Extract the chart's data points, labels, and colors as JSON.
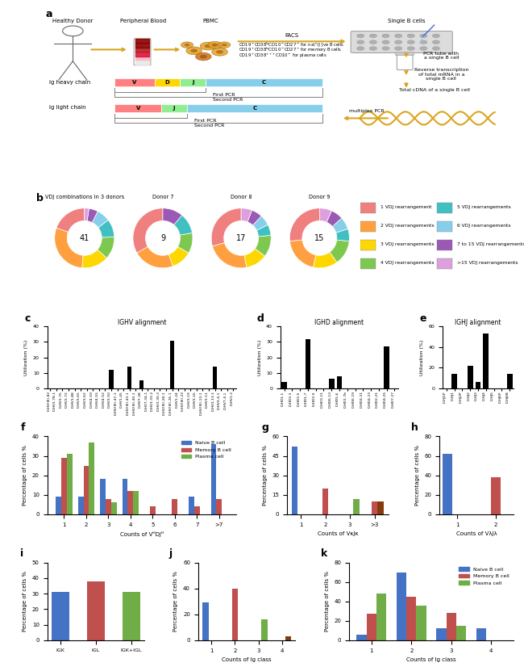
{
  "panel_b": {
    "titles": [
      "VDJ combinations in 3 donors",
      "Donor 7",
      "Donor 8",
      "Donor 9"
    ],
    "numbers": [
      "41",
      "9",
      "17",
      "15"
    ],
    "legend_labels": [
      "1 VDJ rearrangement",
      "2 VDJ rearrangements",
      "3 VDJ rearrangements",
      "4 VDJ rearrangements",
      "5 VDJ rearrangements",
      "6 VDJ rearrangements",
      "7 to 15 VDJ rearrangements",
      ">15 VDJ rearrangements"
    ],
    "donut_colors": [
      "#F08080",
      "#FFA040",
      "#FFD700",
      "#7EC850",
      "#40C0C0",
      "#87CEEB",
      "#9B59B6",
      "#DDA0DD"
    ],
    "donut_all": [
      8,
      12,
      6,
      5,
      4,
      3,
      2,
      1
    ],
    "donut_d7": [
      3,
      2,
      1,
      1,
      1,
      0,
      1,
      0
    ],
    "donut_d8": [
      5,
      4,
      2,
      2,
      1,
      1,
      1,
      1
    ],
    "donut_d9": [
      4,
      3,
      2,
      2,
      1,
      1,
      1,
      1
    ]
  },
  "panel_c": {
    "title": "IGHV alignment",
    "ylabel": "Utilization (%)",
    "ylim": [
      0,
      40
    ],
    "labels": [
      "IGHV(III)-82",
      "IGHV3-78-1",
      "IGHV3-75",
      "IGHV3-72",
      "IGHV1-88",
      "IGHV3-65",
      "IGHV3-62",
      "IGHV4-59",
      "IGHV4-55",
      "IGHV4-52",
      "IGHV3-50",
      "IGHV(III)-47-1",
      "IGHV1-45",
      "IGHV(III)-43-1",
      "IGHV(III)-40-1",
      "IGHV7-38",
      "IGHV7-34-1",
      "IGHV3-33-2",
      "IGHV3-30-2",
      "IGHV(III)-28-1",
      "IGHV(III)-26-1",
      "IGHV1-24",
      "IGHV(III)-22",
      "IGHV3-19",
      "IGHV3-16",
      "IGHV(III)-13-1",
      "IGHV3-11",
      "IGHV3-13-1",
      "IGHV3-4-1",
      "IGHV7-4-1",
      "IGHV1-2"
    ],
    "values": [
      0,
      0,
      0,
      0,
      0,
      0,
      0,
      0,
      0,
      0,
      12,
      0,
      0,
      14,
      0,
      5,
      0,
      0,
      0,
      0,
      31,
      0,
      0,
      0,
      0,
      0,
      0,
      14,
      0,
      0,
      0
    ]
  },
  "panel_d": {
    "title": "IGHD alignment",
    "ylabel": "Utilization (%)",
    "ylim": [
      0,
      40
    ],
    "labels": [
      "IGHD1-1",
      "IGHD3-3",
      "IGHD3-5",
      "IGHD1-7",
      "IGHD3-9",
      "IGHD3-11",
      "IGHD6-13",
      "IGHD5-6",
      "IGHD1-7b",
      "IGHD6-19",
      "IGHD4-21",
      "IGHD4-23",
      "IGHD2-21",
      "IGHD4-25",
      "IGHD7-27"
    ],
    "values": [
      4,
      0,
      0,
      32,
      0,
      0,
      6,
      8,
      0,
      0,
      0,
      0,
      0,
      27,
      0
    ]
  },
  "panel_e": {
    "title": "IGHJ alignment",
    "ylabel": "Utilization (%)",
    "ylim": [
      0,
      60
    ],
    "labels": [
      "IGHJ1P",
      "IGHJ1",
      "IGHJ2P",
      "IGHJ2",
      "IGHJ3",
      "IGHJ4",
      "IGHJ5",
      "IGHJ6P",
      "IGHJ6B"
    ],
    "values": [
      0,
      14,
      0,
      22,
      6,
      53,
      0,
      0,
      14
    ]
  },
  "panel_f": {
    "ylabel": "Percentage of cells %",
    "xlabel": "Counts of VᴴDJᴴ",
    "ylim": [
      0,
      40
    ],
    "xticks": [
      "1",
      "2",
      "3",
      "4",
      "5",
      "6",
      "7",
      ">7"
    ],
    "naive": [
      9,
      9,
      18,
      18,
      0,
      0,
      9,
      36
    ],
    "memory": [
      29,
      25,
      8,
      12,
      4,
      8,
      4,
      8
    ],
    "plasma": [
      31,
      37,
      6,
      12,
      0,
      0,
      0,
      0
    ]
  },
  "panel_g": {
    "ylabel": "Percentage of cells %",
    "xlabel": "Counts of VκJκ",
    "ylim": [
      0,
      60
    ],
    "xticks": [
      "1",
      "2",
      "3",
      ">3"
    ],
    "naive": [
      52,
      0,
      0,
      0
    ],
    "memory": [
      0,
      20,
      0,
      10
    ],
    "plasma": [
      0,
      0,
      12,
      10
    ]
  },
  "panel_h": {
    "ylabel": "Percentage of cells %",
    "xlabel": "Counts of VλJλ",
    "ylim": [
      0,
      80
    ],
    "xticks": [
      "1",
      "2"
    ],
    "naive": [
      62,
      0
    ],
    "memory": [
      0,
      38
    ],
    "plasma": [
      0,
      0
    ]
  },
  "panel_i": {
    "ylabel": "Percentage of cells %",
    "xlabel": "",
    "ylim": [
      0,
      50
    ],
    "xticks": [
      "IGK",
      "IGL",
      "IGK+IGL"
    ],
    "naive": [
      31,
      0,
      0
    ],
    "memory": [
      0,
      38,
      0
    ],
    "plasma": [
      31,
      0,
      0
    ]
  },
  "panel_j": {
    "ylabel": "Percentage of cells %",
    "xlabel": "Counts of Ig class",
    "ylim": [
      0,
      60
    ],
    "xticks": [
      "1",
      "2",
      "3",
      "4"
    ],
    "naive": [
      29,
      0,
      0,
      0
    ],
    "memory": [
      0,
      40,
      0,
      0
    ],
    "plasma": [
      0,
      0,
      16,
      3
    ]
  },
  "panel_k": {
    "ylabel": "Percentage of cells %",
    "xlabel": "Counts of Ig class",
    "ylim": [
      0,
      80
    ],
    "xticks": [
      "1",
      "2",
      "3",
      "4"
    ],
    "naive": [
      6,
      70,
      12,
      12
    ],
    "memory": [
      27,
      45,
      28,
      0
    ],
    "plasma": [
      48,
      36,
      15,
      0
    ]
  },
  "colors": {
    "naive": "#4472C4",
    "memory": "#C0504D",
    "plasma": "#70AD47",
    "plasma_brown": "#843C0C"
  }
}
